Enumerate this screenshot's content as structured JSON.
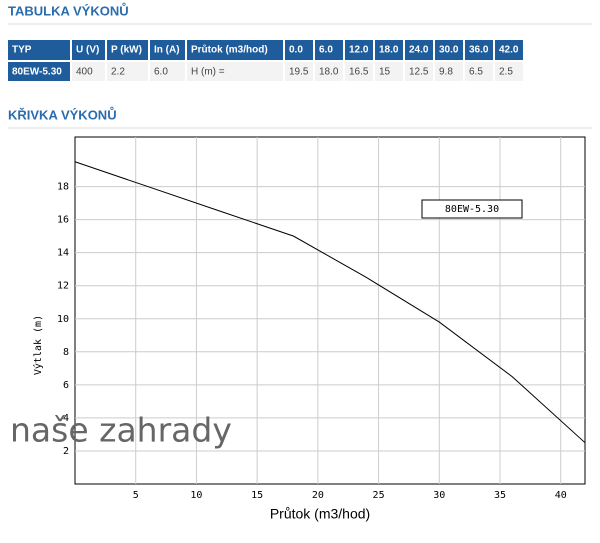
{
  "sections": {
    "table_title": "TABULKA VÝKONŮ",
    "chart_title": "KŘIVKA VÝKONŮ"
  },
  "table": {
    "header": [
      "TYP",
      "U (V)",
      "P (kW)",
      "In (A)",
      "Průtok (m3/hod)",
      "0.0",
      "6.0",
      "12.0",
      "18.0",
      "24.0",
      "30.0",
      "36.0",
      "42.0"
    ],
    "rows": [
      [
        "80EW-5.30",
        "400",
        "2.2",
        "6.0",
        "H (m) =",
        "19.5",
        "18.0",
        "16.5",
        "15",
        "12.5",
        "9.8",
        "6.5",
        "2.5"
      ]
    ]
  },
  "watermark": "naše zahrady",
  "chart_data": {
    "type": "line",
    "x_label": "Průtok (m3/hod)",
    "y_label": "Výtlak (m)",
    "x": [
      0,
      6,
      12,
      18,
      24,
      30,
      36,
      42
    ],
    "series": [
      {
        "name": "80EW-5.30",
        "color": "#000000",
        "values": [
          19.5,
          18.0,
          16.5,
          15,
          12.5,
          9.8,
          6.5,
          2.5
        ]
      }
    ],
    "xlim": [
      0,
      42
    ],
    "ylim": [
      0,
      21
    ],
    "xticks": [
      5,
      10,
      15,
      20,
      25,
      30,
      35,
      40
    ],
    "yticks": [
      2,
      4,
      6,
      8,
      10,
      12,
      14,
      16,
      18
    ],
    "grid": true
  }
}
